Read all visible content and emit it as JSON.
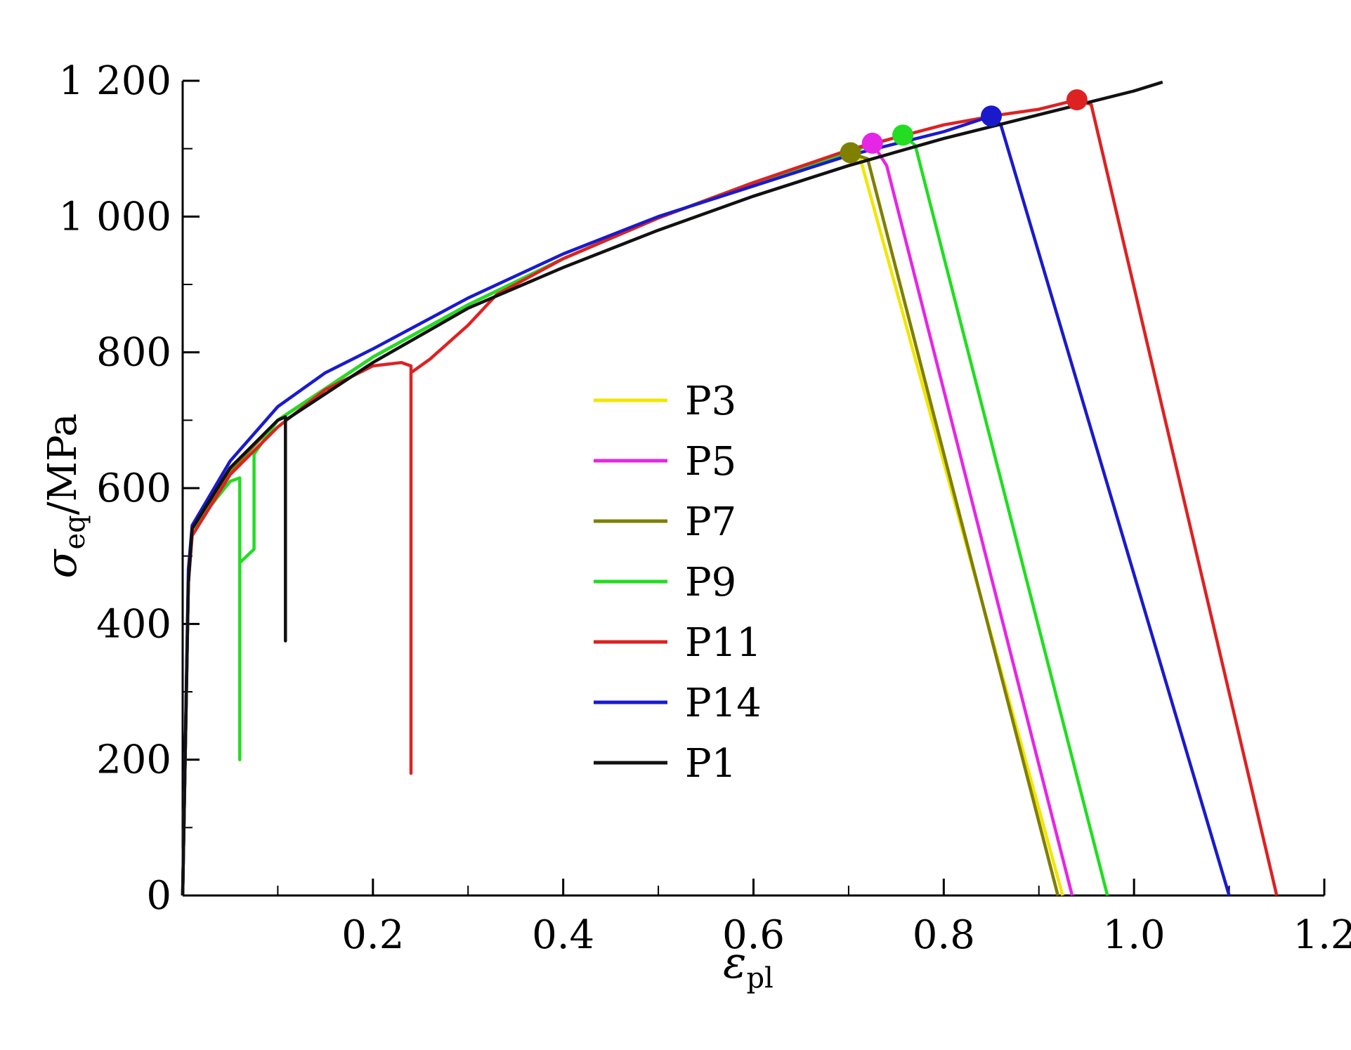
{
  "chart_data": {
    "type": "line",
    "x_axis": {
      "symbol": "ε",
      "subscript": "pl",
      "range": [
        0,
        1.2
      ],
      "ticks": [
        0.2,
        0.4,
        0.6,
        0.8,
        1.0,
        1.2
      ],
      "tick_labels": [
        "0.2",
        "0.4",
        "0.6",
        "0.8",
        "1.0",
        "1.2"
      ]
    },
    "y_axis": {
      "symbol": "σ",
      "subscript": "eq",
      "unit": "/MPa",
      "range": [
        0,
        1200
      ],
      "ticks": [
        0,
        200,
        400,
        600,
        800,
        1000,
        1200
      ],
      "tick_labels": [
        "0",
        "200",
        "400",
        "600",
        "800",
        "1 000",
        "1 200"
      ]
    },
    "grid": false,
    "legend_position": "center",
    "series": [
      {
        "name": "P3",
        "color": "#f2e600",
        "points": [
          [
            0,
            0
          ],
          [
            0.006,
            460
          ],
          [
            0.01,
            540
          ],
          [
            0.05,
            625
          ],
          [
            0.1,
            700
          ],
          [
            0.2,
            793
          ],
          [
            0.3,
            870
          ],
          [
            0.4,
            938
          ],
          [
            0.5,
            998
          ],
          [
            0.6,
            1050
          ],
          [
            0.7,
            1095
          ],
          [
            0.71,
            1097
          ],
          [
            0.925,
            0
          ]
        ],
        "marker": null
      },
      {
        "name": "P5",
        "color": "#e626e6",
        "points": [
          [
            0,
            0
          ],
          [
            0.006,
            460
          ],
          [
            0.01,
            540
          ],
          [
            0.05,
            625
          ],
          [
            0.1,
            700
          ],
          [
            0.2,
            793
          ],
          [
            0.3,
            870
          ],
          [
            0.4,
            938
          ],
          [
            0.5,
            998
          ],
          [
            0.6,
            1050
          ],
          [
            0.7,
            1098
          ],
          [
            0.725,
            1108
          ],
          [
            0.74,
            1075
          ],
          [
            0.935,
            0
          ]
        ],
        "marker": [
          0.725,
          1108
        ]
      },
      {
        "name": "P7",
        "color": "#7f7f00",
        "points": [
          [
            0,
            0
          ],
          [
            0.006,
            460
          ],
          [
            0.01,
            540
          ],
          [
            0.05,
            625
          ],
          [
            0.1,
            700
          ],
          [
            0.2,
            793
          ],
          [
            0.3,
            870
          ],
          [
            0.4,
            938
          ],
          [
            0.5,
            998
          ],
          [
            0.6,
            1050
          ],
          [
            0.7,
            1094
          ],
          [
            0.72,
            1085
          ],
          [
            0.92,
            0
          ]
        ],
        "marker": [
          0.702,
          1094
        ]
      },
      {
        "name": "P9",
        "color": "#22dd22",
        "points": [
          [
            0,
            0
          ],
          [
            0.006,
            460
          ],
          [
            0.01,
            540
          ],
          [
            0.05,
            610
          ],
          [
            0.06,
            615
          ],
          [
            0.06,
            200
          ],
          [
            0.06,
            490
          ],
          [
            0.075,
            510
          ],
          [
            0.075,
            650
          ],
          [
            0.1,
            700
          ],
          [
            0.2,
            793
          ],
          [
            0.3,
            870
          ],
          [
            0.4,
            938
          ],
          [
            0.5,
            998
          ],
          [
            0.6,
            1050
          ],
          [
            0.7,
            1095
          ],
          [
            0.757,
            1120
          ],
          [
            0.77,
            1105
          ],
          [
            0.972,
            0
          ]
        ],
        "marker": [
          0.757,
          1120
        ]
      },
      {
        "name": "P11",
        "color": "#dd2222",
        "points": [
          [
            0,
            0
          ],
          [
            0.006,
            460
          ],
          [
            0.01,
            530
          ],
          [
            0.05,
            620
          ],
          [
            0.1,
            690
          ],
          [
            0.15,
            745
          ],
          [
            0.2,
            780
          ],
          [
            0.23,
            785
          ],
          [
            0.24,
            780
          ],
          [
            0.24,
            180
          ],
          [
            0.24,
            770
          ],
          [
            0.26,
            790
          ],
          [
            0.3,
            840
          ],
          [
            0.33,
            885
          ],
          [
            0.4,
            938
          ],
          [
            0.5,
            998
          ],
          [
            0.6,
            1050
          ],
          [
            0.7,
            1098
          ],
          [
            0.8,
            1135
          ],
          [
            0.86,
            1150
          ],
          [
            0.9,
            1158
          ],
          [
            0.94,
            1172
          ],
          [
            0.955,
            1165
          ],
          [
            1.15,
            0
          ]
        ],
        "marker": [
          0.94,
          1172
        ]
      },
      {
        "name": "P14",
        "color": "#1a1acc",
        "points": [
          [
            0,
            0
          ],
          [
            0.006,
            480
          ],
          [
            0.01,
            545
          ],
          [
            0.05,
            640
          ],
          [
            0.1,
            720
          ],
          [
            0.15,
            770
          ],
          [
            0.2,
            805
          ],
          [
            0.3,
            880
          ],
          [
            0.4,
            945
          ],
          [
            0.5,
            1000
          ],
          [
            0.6,
            1045
          ],
          [
            0.7,
            1090
          ],
          [
            0.8,
            1125
          ],
          [
            0.85,
            1148
          ],
          [
            0.86,
            1135
          ],
          [
            1.1,
            0
          ]
        ],
        "marker": [
          0.85,
          1148
        ]
      },
      {
        "name": "P1",
        "color": "#111111",
        "points": [
          [
            0,
            0
          ],
          [
            0.006,
            460
          ],
          [
            0.01,
            540
          ],
          [
            0.05,
            630
          ],
          [
            0.1,
            700
          ],
          [
            0.108,
            705
          ],
          [
            0.108,
            375
          ],
          [
            0.108,
            700
          ],
          [
            0.2,
            785
          ],
          [
            0.3,
            865
          ],
          [
            0.4,
            925
          ],
          [
            0.5,
            980
          ],
          [
            0.6,
            1030
          ],
          [
            0.7,
            1075
          ],
          [
            0.8,
            1115
          ],
          [
            0.9,
            1150
          ],
          [
            1.0,
            1185
          ],
          [
            1.03,
            1198
          ]
        ],
        "marker": null
      }
    ]
  }
}
